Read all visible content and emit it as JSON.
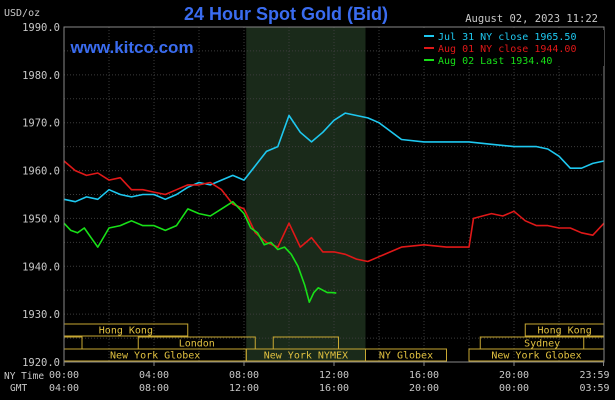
{
  "chart_data": {
    "type": "line",
    "title": "24 Hour Spot Gold (Bid)",
    "watermark": "www.kitco.com",
    "ylabel": "USD/oz",
    "datetime": "August 02, 2023 11:22",
    "ylim": [
      1920.0,
      1990.0
    ],
    "yticks": [
      "1920.0",
      "1930.0",
      "1940.0",
      "1950.0",
      "1960.0",
      "1970.0",
      "1980.0",
      "1990.0"
    ],
    "xlim": [
      0,
      24
    ],
    "xticks": [
      {
        "ny": "00:00",
        "gmt": "04:00",
        "h": 0
      },
      {
        "ny": "04:00",
        "gmt": "08:00",
        "h": 4
      },
      {
        "ny": "08:00",
        "gmt": "12:00",
        "h": 8
      },
      {
        "ny": "12:00",
        "gmt": "16:00",
        "h": 12
      },
      {
        "ny": "16:00",
        "gmt": "20:00",
        "h": 16
      },
      {
        "ny": "20:00",
        "gmt": "00:00",
        "h": 20
      },
      {
        "ny": "23:59",
        "gmt": "03:59",
        "h": 23.98
      }
    ],
    "row_labels": {
      "ny": "NY Time",
      "gmt": "GMT"
    },
    "session_highlight": [
      8.1,
      13.4
    ],
    "grid": true,
    "legend_position": "top-right",
    "series": [
      {
        "name": "Jul 31 NY close 1965.50",
        "color": "#1ec8f0",
        "x": [
          0,
          0.5,
          1,
          1.5,
          2,
          2.5,
          3,
          3.5,
          4,
          4.5,
          5,
          5.5,
          6,
          6.5,
          7,
          7.5,
          8,
          8.5,
          9,
          9.5,
          10,
          10.5,
          11,
          11.5,
          12,
          12.5,
          13,
          13.5,
          14,
          15,
          16,
          17,
          18,
          19,
          20,
          21,
          21.5,
          22,
          22.5,
          23,
          23.5,
          24
        ],
        "y": [
          1954,
          1953.5,
          1954.5,
          1954,
          1956,
          1955,
          1954.5,
          1955,
          1955,
          1954,
          1955,
          1956.5,
          1957.5,
          1957,
          1958,
          1959,
          1958,
          1961,
          1964,
          1965,
          1971.5,
          1968,
          1966,
          1968,
          1970.5,
          1972,
          1971.5,
          1971,
          1970,
          1966.5,
          1966,
          1966,
          1966,
          1965.5,
          1965,
          1965,
          1964.5,
          1963,
          1960.5,
          1960.5,
          1961.5,
          1962
        ]
      },
      {
        "name": "Aug 01 NY close 1944.00",
        "color": "#e01818",
        "x": [
          0,
          0.5,
          1,
          1.5,
          2,
          2.5,
          3,
          3.5,
          4,
          4.5,
          5,
          5.5,
          6,
          6.5,
          7,
          7.5,
          8,
          8.5,
          9,
          9.5,
          10,
          10.5,
          11,
          11.5,
          12,
          12.5,
          13,
          13.5,
          14,
          14.5,
          15,
          16,
          17,
          18,
          18.2,
          19,
          19.5,
          20,
          20.5,
          21,
          21.5,
          22,
          22.5,
          23,
          23.5,
          24
        ],
        "y": [
          1962,
          1960,
          1959,
          1959.5,
          1958,
          1958.5,
          1956,
          1956,
          1955.5,
          1955,
          1956,
          1957,
          1957,
          1957.5,
          1956,
          1953,
          1952,
          1947,
          1945,
          1944,
          1949,
          1944,
          1946,
          1943,
          1943,
          1942.5,
          1941.5,
          1941,
          1942,
          1943,
          1944,
          1944.5,
          1944,
          1944,
          1950,
          1951,
          1950.5,
          1951.5,
          1949.5,
          1948.5,
          1948.5,
          1948,
          1948,
          1947,
          1946.5,
          1949
        ]
      },
      {
        "name": "Aug 02 Last 1934.40",
        "color": "#18e018",
        "x": [
          0,
          0.3,
          0.6,
          0.9,
          1.2,
          1.5,
          2,
          2.5,
          3,
          3.5,
          4,
          4.5,
          5,
          5.5,
          6,
          6.5,
          7,
          7.5,
          8,
          8.3,
          8.6,
          8.9,
          9.2,
          9.5,
          9.8,
          10.1,
          10.4,
          10.7,
          10.9,
          11.1,
          11.3,
          11.5,
          11.7,
          11.9,
          12.1
        ],
        "y": [
          1949,
          1947.5,
          1947,
          1948,
          1946,
          1944,
          1948,
          1948.5,
          1949.5,
          1948.5,
          1948.5,
          1947.5,
          1948.5,
          1952,
          1951,
          1950.5,
          1952,
          1953.5,
          1951,
          1948,
          1947,
          1944.5,
          1945,
          1943.5,
          1944,
          1942.5,
          1940,
          1936,
          1932.5,
          1934.5,
          1935.5,
          1935,
          1934.5,
          1934.5,
          1934.4
        ]
      }
    ],
    "sessions": [
      {
        "label": "Hong Kong",
        "row": 0,
        "start": 0,
        "end": 5.5,
        "show_label": true
      },
      {
        "label": "London",
        "row": 1,
        "start": 3.3,
        "end": 8.5,
        "show_label": true
      },
      {
        "label": "New York Globex",
        "row": 2,
        "start": 0,
        "end": 8.1,
        "show_label": true
      },
      {
        "label": "New York NYMEX",
        "row": 2,
        "start": 8.1,
        "end": 13.4,
        "show_label": true
      },
      {
        "label": "NY Globex",
        "row": 2,
        "start": 13.4,
        "end": 17,
        "show_label": true
      },
      {
        "label": "Hong Kong",
        "row": 0,
        "start": 20.5,
        "end": 24,
        "show_label": true
      },
      {
        "label": "Sydney",
        "row": 1,
        "start": 18.5,
        "end": 24,
        "show_label": true
      },
      {
        "label": "New York Globex",
        "row": 2,
        "start": 18,
        "end": 24,
        "show_label": true
      },
      {
        "label": "",
        "row": 1,
        "start": 0,
        "end": 0.8,
        "show_label": false
      },
      {
        "label": "",
        "row": 1,
        "start": 9.3,
        "end": 12.2,
        "show_label": false
      },
      {
        "label": "",
        "row": 1,
        "start": 23.1,
        "end": 24,
        "show_label": false
      }
    ]
  }
}
